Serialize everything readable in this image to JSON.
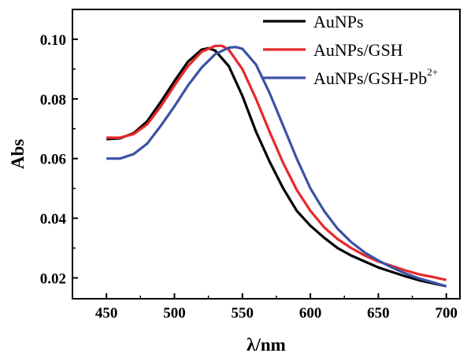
{
  "chart_data": {
    "type": "line",
    "xlabel": "λ/nm",
    "ylabel": "Abs",
    "xlim": [
      425,
      710
    ],
    "ylim": [
      0.013,
      0.11
    ],
    "xticks": [
      450,
      500,
      550,
      600,
      650,
      700
    ],
    "yticks": [
      0.02,
      0.04,
      0.06,
      0.08,
      0.1
    ],
    "xtick_labels": [
      "450",
      "500",
      "550",
      "600",
      "650",
      "700"
    ],
    "ytick_labels": [
      "0.02",
      "0.04",
      "0.06",
      "0.08",
      "0.10"
    ],
    "grid": false,
    "legend_position": "top-right",
    "series": [
      {
        "name": "AuNPs",
        "name_sup": "",
        "color": "#000000",
        "x": [
          450,
          460,
          470,
          480,
          490,
          500,
          510,
          520,
          525,
          530,
          540,
          550,
          560,
          570,
          580,
          590,
          600,
          610,
          620,
          630,
          640,
          650,
          660,
          670,
          680,
          690,
          700
        ],
        "y": [
          0.0665,
          0.0668,
          0.0685,
          0.0725,
          0.079,
          0.086,
          0.0925,
          0.0965,
          0.097,
          0.0962,
          0.091,
          0.081,
          0.069,
          0.059,
          0.05,
          0.0425,
          0.0375,
          0.0335,
          0.03,
          0.0275,
          0.0255,
          0.0235,
          0.022,
          0.0205,
          0.0192,
          0.0182,
          0.0172
        ]
      },
      {
        "name": "AuNPs/GSH",
        "name_sup": "",
        "color": "#e8282a",
        "x": [
          450,
          460,
          470,
          480,
          490,
          500,
          510,
          520,
          530,
          535,
          540,
          550,
          560,
          570,
          580,
          590,
          600,
          610,
          620,
          630,
          640,
          650,
          660,
          670,
          680,
          690,
          700
        ],
        "y": [
          0.067,
          0.067,
          0.0682,
          0.0715,
          0.0775,
          0.0845,
          0.091,
          0.0958,
          0.0978,
          0.0978,
          0.0965,
          0.09,
          0.08,
          0.069,
          0.0585,
          0.0495,
          0.0425,
          0.037,
          0.033,
          0.03,
          0.0275,
          0.0255,
          0.024,
          0.0225,
          0.0212,
          0.0203,
          0.0193
        ]
      },
      {
        "name": "AuNPs/GSH-Pb",
        "name_sup": "2+",
        "color": "#3a53a4",
        "x": [
          450,
          460,
          470,
          480,
          490,
          500,
          510,
          520,
          530,
          540,
          545,
          550,
          560,
          570,
          580,
          590,
          600,
          610,
          620,
          630,
          640,
          650,
          660,
          670,
          680,
          690,
          700
        ],
        "y": [
          0.06,
          0.06,
          0.0615,
          0.065,
          0.071,
          0.0775,
          0.0845,
          0.0905,
          0.095,
          0.0972,
          0.0974,
          0.0968,
          0.0915,
          0.082,
          0.071,
          0.06,
          0.05,
          0.0425,
          0.0365,
          0.032,
          0.0285,
          0.0258,
          0.0235,
          0.0215,
          0.0198,
          0.0185,
          0.0172
        ]
      }
    ]
  }
}
